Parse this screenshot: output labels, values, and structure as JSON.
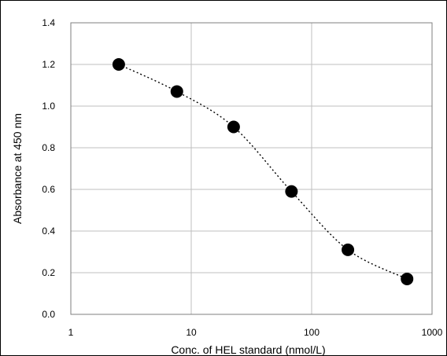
{
  "chart_data": {
    "type": "scatter",
    "title": "",
    "xlabel": "Conc. of HEL standard (nmol/L)",
    "ylabel": "Absorbance at 450 nm",
    "x_scale": "log",
    "xlim": [
      1,
      1000
    ],
    "ylim": [
      0.0,
      1.4
    ],
    "x_ticks": [
      "1",
      "10",
      "100",
      "1000"
    ],
    "y_ticks": [
      "0.0",
      "0.2",
      "0.4",
      "0.6",
      "0.8",
      "1.0",
      "1.2",
      "1.4"
    ],
    "grid": true,
    "legend": "none",
    "series": [
      {
        "x": [
          2.5,
          7.6,
          22.5,
          68,
          200,
          620
        ],
        "y": [
          1.2,
          1.07,
          0.9,
          0.59,
          0.31,
          0.17
        ],
        "marker_color": "#000000",
        "fit_line": "dotted"
      }
    ]
  }
}
